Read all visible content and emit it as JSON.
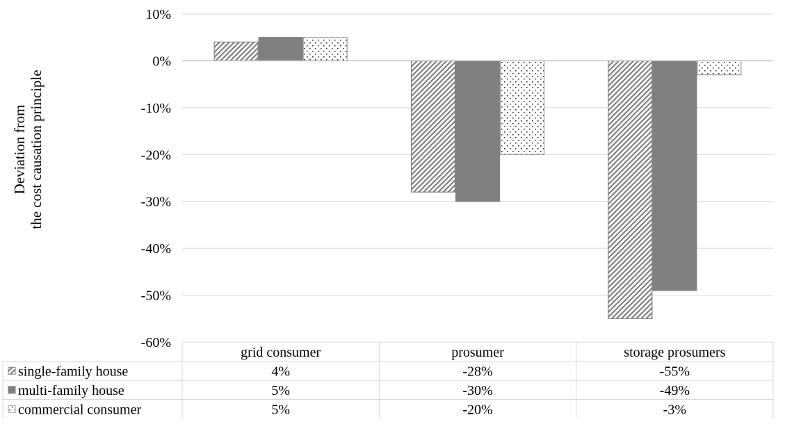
{
  "chart_data": {
    "type": "bar",
    "ylabel_lines": [
      "Deviation from",
      "the cost causation principle"
    ],
    "categories": [
      "grid consumer",
      "prosumer",
      "storage prosumers"
    ],
    "series": [
      {
        "name": "single-family house",
        "values": [
          4,
          -28,
          -55
        ],
        "labels": [
          "4%",
          "-28%",
          "-55%"
        ],
        "fill": "hatch",
        "color": "#808080"
      },
      {
        "name": "multi-family house",
        "values": [
          5,
          -30,
          -49
        ],
        "labels": [
          "5%",
          "-30%",
          "-49%"
        ],
        "fill": "solid",
        "color": "#808080"
      },
      {
        "name": "commercial consumer",
        "values": [
          5,
          -20,
          -3
        ],
        "labels": [
          "5%",
          "-20%",
          "-3%"
        ],
        "fill": "dots",
        "color": "#808080"
      }
    ],
    "ylim": [
      -60,
      10
    ],
    "yticks": [
      10,
      0,
      -10,
      -20,
      -30,
      -40,
      -50,
      -60
    ],
    "ytick_labels": [
      "10%",
      "0%",
      "-10%",
      "-20%",
      "-30%",
      "-40%",
      "-50%",
      "-60%"
    ],
    "grid": true,
    "legend": "data-table"
  }
}
